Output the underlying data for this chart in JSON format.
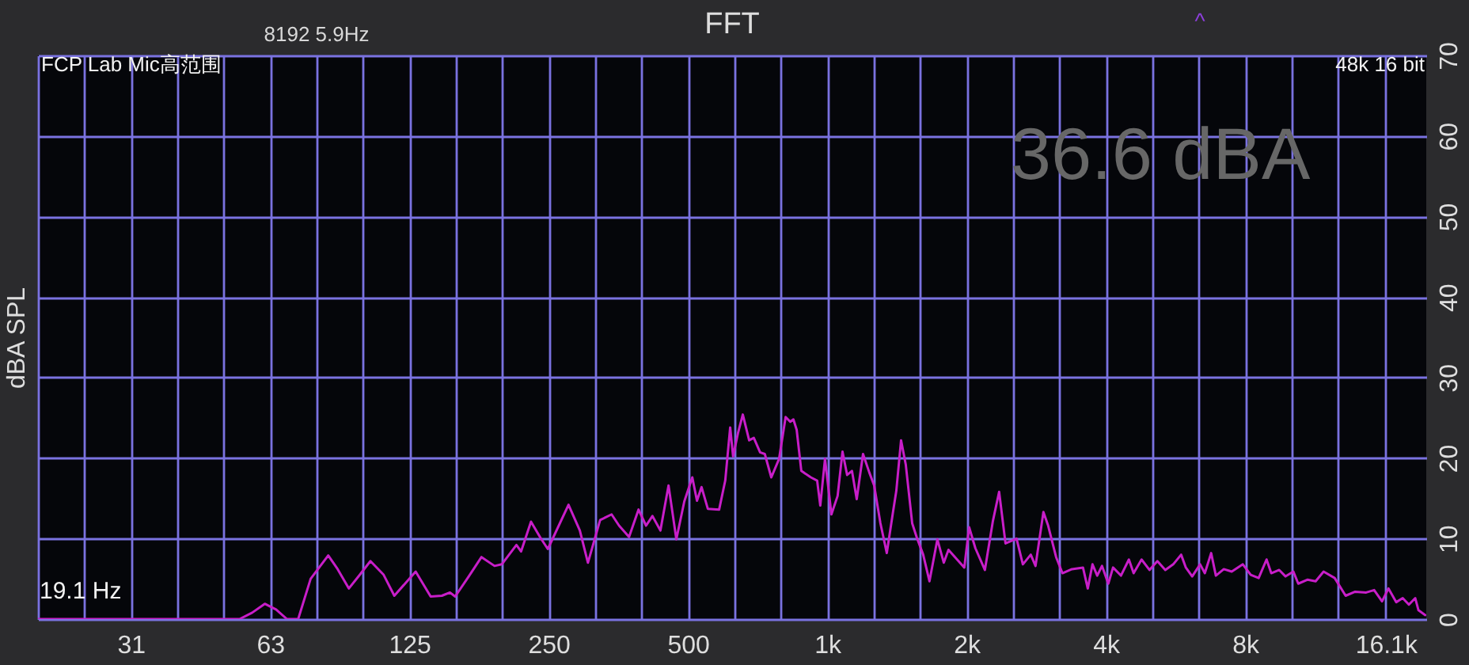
{
  "chart_data": {
    "type": "line",
    "title": "FFT",
    "ylabel": "dBA SPL",
    "annotations": [
      "8192 5.9Hz",
      "FCP Lab Mic高范围",
      "48k 16 bit",
      "36.6 dBA",
      "19.1 Hz",
      "^"
    ],
    "x": [
      19.7,
      53.7,
      57.2,
      60.9,
      64.4,
      68,
      71.9,
      76.5,
      83.5,
      87.5,
      92.5,
      97.7,
      103,
      110,
      116,
      129,
      139,
      147,
      153,
      157,
      168,
      179,
      191,
      198,
      213,
      218,
      229,
      240,
      249,
      276,
      292,
      304,
      323,
      342,
      355,
      373,
      391,
      406,
      419,
      436,
      454,
      472,
      491,
      511,
      523,
      535,
      552,
      584,
      602,
      617,
      626,
      642,
      657,
      678,
      694,
      716,
      733,
      757,
      787,
      813,
      832,
      845,
      859,
      879,
      922,
      951,
      966,
      989,
      1021,
      1053,
      1079,
      1104,
      1131,
      1158,
      1195,
      1233,
      1263,
      1303,
      1345,
      1388,
      1410,
      1444,
      1478,
      1526,
      1562,
      1612,
      1663,
      1730,
      1786,
      1828,
      1978,
      2026,
      2090,
      2191,
      2279,
      2352,
      2428,
      2565,
      2647,
      2753,
      2819,
      2932,
      3002,
      3123,
      3223,
      3378,
      3570,
      3656,
      3743,
      3832,
      3924,
      4049,
      4146,
      4312,
      4486,
      4593,
      4778,
      4970,
      5169,
      5377,
      5593,
      5818,
      5956,
      6147,
      6394,
      6546,
      6755,
      6916,
      7194,
      7483,
      7909,
      8226,
      8556,
      8899,
      9111,
      9477,
      9781,
      10170,
      10420,
      10920,
      11360,
      11820,
      12490,
      13190,
      13830,
      14610,
      15200,
      15810,
      16320,
      16970,
      17520,
      18070,
      18650,
      18950,
      19600
    ],
    "series": [
      {
        "color": "#c81ec8",
        "values": [
          0,
          0,
          0.8,
          1.9,
          1.2,
          0,
          0,
          5.0,
          7.9,
          6.2,
          3.8,
          5.5,
          7.2,
          5.5,
          2.9,
          5.9,
          2.8,
          2.9,
          3.3,
          2.8,
          5.3,
          7.7,
          6.6,
          6.8,
          9.2,
          8.4,
          12.1,
          10.1,
          8.7,
          14.2,
          11.0,
          7.0,
          12.3,
          13.0,
          11.6,
          10.2,
          13.6,
          11.6,
          12.8,
          11.0,
          16.6,
          9.9,
          14.6,
          17.6,
          14.7,
          16.4,
          13.7,
          13.6,
          17.2,
          23.8,
          20.2,
          23.2,
          25.4,
          22.2,
          22.5,
          20.7,
          20.5,
          17.6,
          19.9,
          25.1,
          24.5,
          24.8,
          23.5,
          18.4,
          17.6,
          17.2,
          14.1,
          19.9,
          13.0,
          15.3,
          20.8,
          17.9,
          18.4,
          14.9,
          20.5,
          18.2,
          16.6,
          11.9,
          8.2,
          13.4,
          15.9,
          22.2,
          19.2,
          11.9,
          10.1,
          8.0,
          4.7,
          9.9,
          7.0,
          8.6,
          6.4,
          11.4,
          8.8,
          6.1,
          12.1,
          15.8,
          9.4,
          10.0,
          6.8,
          8.0,
          6.6,
          13.3,
          11.6,
          7.7,
          5.7,
          6.2,
          6.4,
          3.8,
          6.8,
          5.4,
          6.6,
          4.4,
          6.4,
          5.4,
          7.4,
          5.7,
          7.4,
          6.1,
          7.2,
          6.1,
          6.8,
          8.0,
          6.4,
          5.3,
          6.8,
          5.7,
          8.2,
          5.4,
          6.2,
          5.9,
          6.8,
          5.5,
          5.1,
          7.4,
          5.7,
          6.1,
          5.3,
          5.9,
          4.4,
          4.9,
          4.7,
          5.9,
          5.1,
          2.9,
          3.4,
          3.3,
          3.6,
          2.2,
          3.8,
          2.1,
          2.6,
          1.8,
          2.6,
          1.1,
          0.5
        ]
      }
    ],
    "xlim": [
      19.7,
      19700
    ],
    "xticks": [
      {
        "value": 19.7,
        "label": null
      },
      {
        "value": 24.8,
        "label": null
      },
      {
        "value": 31.25,
        "label": "31"
      },
      {
        "value": 39.4,
        "label": null
      },
      {
        "value": 49.6,
        "label": null
      },
      {
        "value": 62.5,
        "label": "63"
      },
      {
        "value": 78.7,
        "label": null
      },
      {
        "value": 99.2,
        "label": null
      },
      125,
      {
        "value": 157.5,
        "label": null
      },
      {
        "value": 198.4,
        "label": null
      },
      250,
      {
        "value": 315,
        "label": null
      },
      {
        "value": 396.9,
        "label": null
      },
      500,
      {
        "value": 630,
        "label": null
      },
      {
        "value": 793.7,
        "label": null
      },
      {
        "value": 1000,
        "label": "1k"
      },
      {
        "value": 1259.9,
        "label": null
      },
      {
        "value": 1587.4,
        "label": null
      },
      {
        "value": 2000,
        "label": "2k"
      },
      {
        "value": 2519.8,
        "label": null
      },
      {
        "value": 3174.8,
        "label": null
      },
      {
        "value": 4000,
        "label": "4k"
      },
      {
        "value": 5039.7,
        "label": null
      },
      {
        "value": 6349.6,
        "label": null
      },
      {
        "value": 8000,
        "label": "8k"
      },
      {
        "value": 10079,
        "label": null
      },
      {
        "value": 12699,
        "label": null
      },
      {
        "value": 16100,
        "label": "16.1k"
      }
    ],
    "ylim": [
      0,
      70
    ],
    "yticks": [
      0,
      10,
      20,
      30,
      40,
      50,
      60,
      70
    ],
    "log": "x",
    "grid": true
  }
}
